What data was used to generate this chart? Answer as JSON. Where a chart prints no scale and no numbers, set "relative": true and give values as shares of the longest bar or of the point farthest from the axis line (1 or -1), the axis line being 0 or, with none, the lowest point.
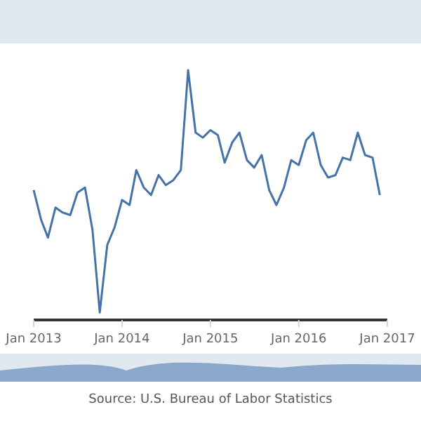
{
  "chart_data": {
    "type": "line",
    "relative": true,
    "x": [
      "2013-01",
      "2013-02",
      "2013-03",
      "2013-04",
      "2013-05",
      "2013-06",
      "2013-07",
      "2013-08",
      "2013-09",
      "2013-10",
      "2013-11",
      "2013-12",
      "2014-01",
      "2014-02",
      "2014-03",
      "2014-04",
      "2014-05",
      "2014-06",
      "2014-07",
      "2014-08",
      "2014-09",
      "2014-10",
      "2014-11",
      "2014-12",
      "2015-01",
      "2015-02",
      "2015-03",
      "2015-04",
      "2015-05",
      "2015-06",
      "2015-07",
      "2015-08",
      "2015-09",
      "2015-10",
      "2015-11",
      "2015-12",
      "2016-01",
      "2016-02",
      "2016-03",
      "2016-04",
      "2016-05",
      "2016-06",
      "2016-07",
      "2016-08",
      "2016-09",
      "2016-10",
      "2016-11",
      "2016-12"
    ],
    "series": [
      {
        "color": "#4572a7",
        "values": [
          0.52,
          0.4,
          0.33,
          0.45,
          0.43,
          0.42,
          0.51,
          0.53,
          0.36,
          0.03,
          0.3,
          0.37,
          0.48,
          0.46,
          0.6,
          0.53,
          0.5,
          0.58,
          0.54,
          0.56,
          0.6,
          1,
          0.75,
          0.73,
          0.76,
          0.74,
          0.63,
          0.71,
          0.75,
          0.64,
          0.61,
          0.66,
          0.52,
          0.46,
          0.53,
          0.64,
          0.62,
          0.72,
          0.75,
          0.62,
          0.57,
          0.58,
          0.65,
          0.64,
          0.75,
          0.66,
          0.65,
          0.5
        ]
      }
    ],
    "xlim": [
      "2013-01",
      "2017-01"
    ],
    "xticks": [
      {
        "value": "2013-01",
        "label": "Jan 2013"
      },
      {
        "value": "2014-01",
        "label": "Jan 2014"
      },
      {
        "value": "2015-01",
        "label": "Jan 2015"
      },
      {
        "value": "2016-01",
        "label": "Jan 2016"
      },
      {
        "value": "2017-01",
        "label": "Jan 2017"
      }
    ],
    "annotations": [
      "Source: U.S. Bureau of Labor Statistics"
    ]
  }
}
